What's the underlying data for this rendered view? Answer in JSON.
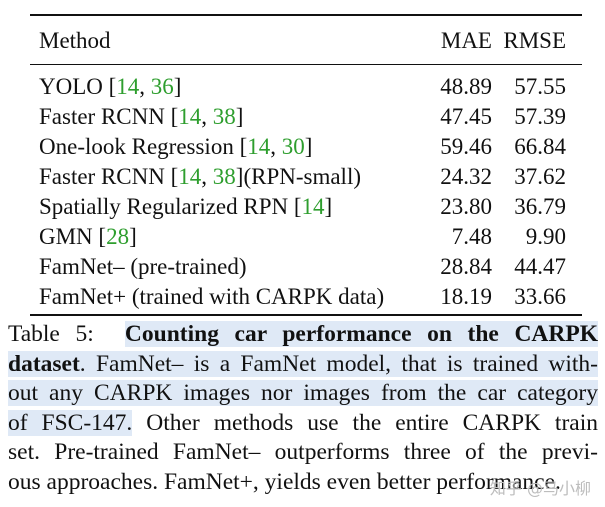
{
  "table": {
    "header": {
      "method": "Method",
      "mae": "MAE",
      "rmse": "RMSE"
    },
    "rows": [
      {
        "method_pre": "YOLO [",
        "refs": [
          "14",
          "36"
        ],
        "method_post": "]",
        "mae": "48.89",
        "rmse": "57.55"
      },
      {
        "method_pre": "Faster RCNN [",
        "refs": [
          "14",
          "38"
        ],
        "method_post": "]",
        "mae": "47.45",
        "rmse": "57.39"
      },
      {
        "method_pre": "One-look Regression [",
        "refs": [
          "14",
          "30"
        ],
        "method_post": "]",
        "mae": "59.46",
        "rmse": "66.84"
      },
      {
        "method_pre": "Faster RCNN [",
        "refs": [
          "14",
          "38"
        ],
        "method_post": "](RPN-small)",
        "mae": "24.32",
        "rmse": "37.62"
      },
      {
        "method_pre": "Spatially Regularized RPN [",
        "refs": [
          "14"
        ],
        "method_post": "]",
        "mae": "23.80",
        "rmse": "36.79"
      },
      {
        "method_pre": "GMN [",
        "refs": [
          "28"
        ],
        "method_post": "]",
        "mae": "7.48",
        "rmse": "9.90"
      },
      {
        "method_pre": "FamNet– (pre-trained)",
        "refs": [],
        "method_post": "",
        "mae": "28.84",
        "rmse": "44.47"
      },
      {
        "method_pre": "FamNet+ (trained with CARPK data)",
        "refs": [],
        "method_post": "",
        "mae": "18.19",
        "rmse": "33.66"
      }
    ]
  },
  "caption": {
    "label": "Table 5:",
    "title_part1": "Counting car performance on the CARPK",
    "title_part2": "dataset",
    "line2_rest": ". FamNet– is a FamNet model, that is trained with-",
    "line3": "out any CARPK images nor images from the car category",
    "line4_hl": "of FSC-147.",
    "line4_rest": " Other methods use the entire CARPK train",
    "line5": "set. Pre-trained FamNet– outperforms three of the previ-",
    "line6": "ous approaches. FamNet+, yields even better performance."
  },
  "watermark": "知乎 @马小柳"
}
